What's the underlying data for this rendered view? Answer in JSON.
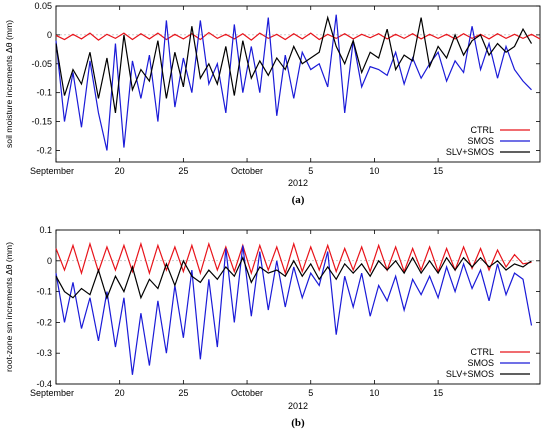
{
  "figure": {
    "panels": [
      {
        "caption": "(a)"
      },
      {
        "caption": "(b)"
      }
    ]
  },
  "chart_data": [
    {
      "type": "line",
      "panel_label": "(a)",
      "ylabel": "soil moisture increments Δθ (mm)",
      "xlabel": "2012",
      "x_range": [
        0,
        57
      ],
      "ylim": [
        -0.22,
        0.05
      ],
      "yticks": [
        {
          "v": 0.05,
          "label": "0.05"
        },
        {
          "v": 0,
          "label": "0"
        },
        {
          "v": -0.05,
          "label": "-0.05"
        },
        {
          "v": -0.1,
          "label": "-0.1"
        },
        {
          "v": -0.15,
          "label": "-0.15"
        },
        {
          "v": -0.2,
          "label": "-0.2"
        }
      ],
      "xticks": [
        {
          "v": 0,
          "label": "September"
        },
        {
          "v": 7.5,
          "label": "20"
        },
        {
          "v": 15,
          "label": "25"
        },
        {
          "v": 22.5,
          "label": "October"
        },
        {
          "v": 30,
          "label": "5"
        },
        {
          "v": 37.5,
          "label": "10"
        },
        {
          "v": 45,
          "label": "15"
        }
      ],
      "legend_position": "bottom-right",
      "grid": false,
      "series": [
        {
          "name": "CTRL",
          "color": "#e8141b",
          "values": [
            -0.001,
            -0.008,
            0.001,
            -0.007,
            0.003,
            -0.009,
            0.001,
            -0.006,
            0.003,
            -0.008,
            0.002,
            -0.007,
            0.003,
            -0.008,
            0.001,
            -0.007,
            0.002,
            -0.008,
            0.004,
            -0.006,
            0.001,
            -0.007,
            0.002,
            -0.009,
            0.003,
            -0.006,
            0.001,
            -0.008,
            0.002,
            -0.007,
            0.003,
            -0.008,
            0.001,
            -0.006,
            0.002,
            -0.007,
            0.001,
            -0.005,
            0.002,
            -0.007,
            0.001,
            -0.006,
            0.002,
            -0.007,
            0.001,
            -0.006,
            0.001,
            -0.007,
            0.002,
            -0.006,
            0.001,
            -0.007,
            0.002,
            -0.006,
            0.001,
            -0.006,
            0.001,
            -0.007
          ]
        },
        {
          "name": "SMOS",
          "color": "#1b1bd8",
          "values": [
            -0.01,
            -0.15,
            -0.065,
            -0.16,
            -0.045,
            -0.135,
            -0.2,
            -0.015,
            -0.195,
            -0.045,
            -0.11,
            -0.035,
            -0.15,
            0.025,
            -0.125,
            -0.04,
            -0.1,
            0.025,
            -0.085,
            -0.05,
            -0.135,
            0.018,
            -0.1,
            -0.02,
            -0.1,
            0.03,
            -0.14,
            -0.035,
            -0.11,
            -0.03,
            -0.06,
            -0.05,
            -0.09,
            0.035,
            -0.135,
            -0.01,
            -0.09,
            -0.055,
            -0.06,
            -0.07,
            -0.03,
            -0.085,
            -0.04,
            -0.075,
            -0.05,
            -0.03,
            -0.08,
            -0.045,
            -0.065,
            0.015,
            -0.06,
            -0.015,
            -0.075,
            -0.02,
            -0.06,
            -0.08,
            -0.095
          ]
        },
        {
          "name": "SLV+SMOS",
          "color": "#000000",
          "values": [
            -0.015,
            -0.105,
            -0.06,
            -0.085,
            -0.03,
            -0.11,
            -0.04,
            -0.135,
            0.0,
            -0.095,
            -0.06,
            -0.08,
            -0.01,
            -0.11,
            -0.03,
            -0.09,
            0.015,
            -0.075,
            -0.05,
            -0.085,
            -0.02,
            -0.105,
            -0.01,
            -0.075,
            -0.045,
            -0.07,
            -0.04,
            -0.06,
            -0.02,
            -0.05,
            -0.04,
            -0.03,
            0.03,
            -0.02,
            -0.05,
            -0.01,
            -0.065,
            -0.03,
            -0.04,
            0.01,
            -0.06,
            -0.035,
            -0.045,
            0.03,
            -0.055,
            -0.02,
            -0.04,
            0.0,
            -0.035,
            -0.01,
            0.0,
            -0.035,
            -0.015,
            -0.03,
            -0.02,
            0.01,
            -0.015
          ]
        }
      ]
    },
    {
      "type": "line",
      "panel_label": "(b)",
      "ylabel": "root-zone sm increments Δθ (mm)",
      "xlabel": "2012",
      "x_range": [
        0,
        57
      ],
      "ylim": [
        -0.4,
        0.1
      ],
      "yticks": [
        {
          "v": 0.1,
          "label": "0.1"
        },
        {
          "v": 0,
          "label": "0"
        },
        {
          "v": -0.1,
          "label": "-0.1"
        },
        {
          "v": -0.2,
          "label": "-0.2"
        },
        {
          "v": -0.3,
          "label": "-0.3"
        },
        {
          "v": -0.4,
          "label": "-0.4"
        }
      ],
      "xticks": [
        {
          "v": 0,
          "label": "September"
        },
        {
          "v": 7.5,
          "label": "20"
        },
        {
          "v": 15,
          "label": "25"
        },
        {
          "v": 22.5,
          "label": "October"
        },
        {
          "v": 30,
          "label": "5"
        },
        {
          "v": 37.5,
          "label": "10"
        },
        {
          "v": 45,
          "label": "15"
        }
      ],
      "legend_position": "bottom-right",
      "grid": false,
      "series": [
        {
          "name": "CTRL",
          "color": "#e8141b",
          "values": [
            0.04,
            -0.03,
            0.05,
            -0.04,
            0.055,
            -0.035,
            0.045,
            -0.03,
            0.05,
            -0.035,
            0.055,
            -0.04,
            0.05,
            -0.03,
            0.045,
            -0.035,
            0.05,
            -0.04,
            0.055,
            -0.03,
            0.045,
            -0.035,
            0.05,
            -0.04,
            0.05,
            -0.03,
            0.045,
            -0.04,
            0.055,
            -0.035,
            0.045,
            -0.03,
            0.05,
            -0.035,
            0.04,
            -0.03,
            0.045,
            -0.035,
            0.05,
            -0.03,
            0.045,
            -0.035,
            0.04,
            -0.03,
            0.045,
            -0.035,
            0.04,
            -0.03,
            0.045,
            -0.025,
            0.04,
            -0.03,
            0.035,
            -0.02,
            0.02,
            -0.01,
            -0.005
          ]
        },
        {
          "name": "SMOS",
          "color": "#1b1bd8",
          "values": [
            -0.04,
            -0.2,
            -0.07,
            -0.22,
            -0.12,
            -0.26,
            -0.1,
            -0.28,
            -0.12,
            -0.37,
            -0.17,
            -0.34,
            -0.13,
            -0.3,
            -0.08,
            -0.25,
            -0.03,
            -0.32,
            -0.06,
            -0.28,
            0.04,
            -0.2,
            0.05,
            -0.18,
            0.03,
            -0.16,
            0.0,
            -0.15,
            -0.02,
            -0.12,
            -0.04,
            -0.08,
            0.03,
            -0.24,
            -0.05,
            -0.15,
            -0.04,
            -0.18,
            -0.08,
            -0.13,
            -0.05,
            -0.16,
            -0.06,
            -0.11,
            -0.05,
            -0.12,
            -0.02,
            -0.1,
            -0.01,
            -0.09,
            -0.03,
            -0.13,
            -0.01,
            -0.11,
            -0.04,
            -0.06,
            -0.21
          ]
        },
        {
          "name": "SLV+SMOS",
          "color": "#000000",
          "values": [
            -0.05,
            -0.1,
            -0.12,
            -0.09,
            -0.11,
            -0.03,
            -0.12,
            -0.05,
            -0.1,
            -0.02,
            -0.12,
            -0.06,
            -0.09,
            -0.01,
            -0.08,
            0.0,
            -0.05,
            -0.07,
            -0.03,
            -0.06,
            -0.02,
            -0.05,
            0.01,
            -0.07,
            -0.02,
            -0.04,
            -0.03,
            -0.05,
            0.0,
            -0.05,
            -0.01,
            -0.06,
            -0.02,
            -0.06,
            -0.01,
            -0.04,
            -0.01,
            -0.05,
            0.0,
            -0.03,
            0.0,
            -0.04,
            0.01,
            -0.04,
            0.0,
            -0.04,
            0.01,
            -0.03,
            0.01,
            -0.02,
            0.01,
            -0.02,
            0.0,
            -0.03,
            -0.01,
            -0.02,
            0.0
          ]
        }
      ]
    }
  ]
}
